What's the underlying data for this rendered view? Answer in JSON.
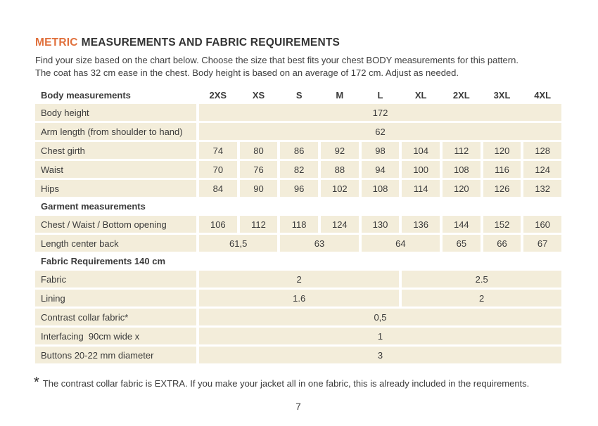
{
  "theme": {
    "accent": "#e0703c",
    "cell_bg": "#f3edda",
    "text_color": "#3b3b3b",
    "page_bg": "#ffffff"
  },
  "header": {
    "title_accent": "METRIC",
    "title_rest": "MEASUREMENTS AND FABRIC REQUIREMENTS",
    "intro_line1": "Find your size based on the chart below. Choose the size that best fits your chest BODY measurements for this pattern.",
    "intro_line2": "The coat has 32 cm ease in the chest. Body height is based on an average of 172 cm. Adjust as needed."
  },
  "table": {
    "header_label": "Body measurements",
    "columns": [
      "2XS",
      "XS",
      "S",
      "M",
      "L",
      "XL",
      "2XL",
      "3XL",
      "4XL"
    ],
    "rows": [
      {
        "type": "data",
        "label": "Body height",
        "cells": [
          {
            "span": 9,
            "text": "172"
          }
        ]
      },
      {
        "type": "data",
        "label": "Arm length (from shoulder to hand)",
        "cells": [
          {
            "span": 9,
            "text": "62"
          }
        ]
      },
      {
        "type": "data",
        "label": "Chest girth",
        "cells": [
          {
            "span": 1,
            "text": "74"
          },
          {
            "span": 1,
            "text": "80"
          },
          {
            "span": 1,
            "text": "86"
          },
          {
            "span": 1,
            "text": "92"
          },
          {
            "span": 1,
            "text": "98"
          },
          {
            "span": 1,
            "text": "104"
          },
          {
            "span": 1,
            "text": "112"
          },
          {
            "span": 1,
            "text": "120"
          },
          {
            "span": 1,
            "text": "128"
          }
        ]
      },
      {
        "type": "data",
        "label": "Waist",
        "cells": [
          {
            "span": 1,
            "text": "70"
          },
          {
            "span": 1,
            "text": "76"
          },
          {
            "span": 1,
            "text": "82"
          },
          {
            "span": 1,
            "text": "88"
          },
          {
            "span": 1,
            "text": "94"
          },
          {
            "span": 1,
            "text": "100"
          },
          {
            "span": 1,
            "text": "108"
          },
          {
            "span": 1,
            "text": "116"
          },
          {
            "span": 1,
            "text": "124"
          }
        ]
      },
      {
        "type": "data",
        "label": "Hips",
        "cells": [
          {
            "span": 1,
            "text": "84"
          },
          {
            "span": 1,
            "text": "90"
          },
          {
            "span": 1,
            "text": "96"
          },
          {
            "span": 1,
            "text": "102"
          },
          {
            "span": 1,
            "text": "108"
          },
          {
            "span": 1,
            "text": "114"
          },
          {
            "span": 1,
            "text": "120"
          },
          {
            "span": 1,
            "text": "126"
          },
          {
            "span": 1,
            "text": "132"
          }
        ]
      },
      {
        "type": "section",
        "label": "Garment measurements"
      },
      {
        "type": "data",
        "label": "Chest / Waist / Bottom opening",
        "cells": [
          {
            "span": 1,
            "text": "106"
          },
          {
            "span": 1,
            "text": "112"
          },
          {
            "span": 1,
            "text": "118"
          },
          {
            "span": 1,
            "text": "124"
          },
          {
            "span": 1,
            "text": "130"
          },
          {
            "span": 1,
            "text": "136"
          },
          {
            "span": 1,
            "text": "144"
          },
          {
            "span": 1,
            "text": "152"
          },
          {
            "span": 1,
            "text": "160"
          }
        ]
      },
      {
        "type": "data",
        "label": "Length center back",
        "cells": [
          {
            "span": 2,
            "text": "61,5"
          },
          {
            "span": 2,
            "text": "63"
          },
          {
            "span": 2,
            "text": "64"
          },
          {
            "span": 1,
            "text": "65"
          },
          {
            "span": 1,
            "text": "66"
          },
          {
            "span": 1,
            "text": "67"
          }
        ]
      },
      {
        "type": "section",
        "label": "Fabric Requirements 140 cm"
      },
      {
        "type": "data",
        "label": "Fabric",
        "cells": [
          {
            "span": 5,
            "text": "2"
          },
          {
            "span": 4,
            "text": "2.5"
          }
        ]
      },
      {
        "type": "data",
        "label": "Lining",
        "cells": [
          {
            "span": 5,
            "text": "1.6"
          },
          {
            "span": 4,
            "text": "2"
          }
        ]
      },
      {
        "type": "data",
        "label": "Contrast collar fabric*",
        "cells": [
          {
            "span": 9,
            "text": "0,5"
          }
        ]
      },
      {
        "type": "data",
        "label": "Interfacing  90cm wide x",
        "cells": [
          {
            "span": 9,
            "text": "1"
          }
        ]
      },
      {
        "type": "data",
        "label": "Buttons 20-22 mm diameter",
        "cells": [
          {
            "span": 9,
            "text": "3"
          }
        ]
      }
    ]
  },
  "footnote": {
    "marker": "*",
    "text": "The contrast collar fabric is EXTRA. If you make your jacket all in one fabric, this is already included in the requirements."
  },
  "footer": {
    "page_number": "7"
  }
}
